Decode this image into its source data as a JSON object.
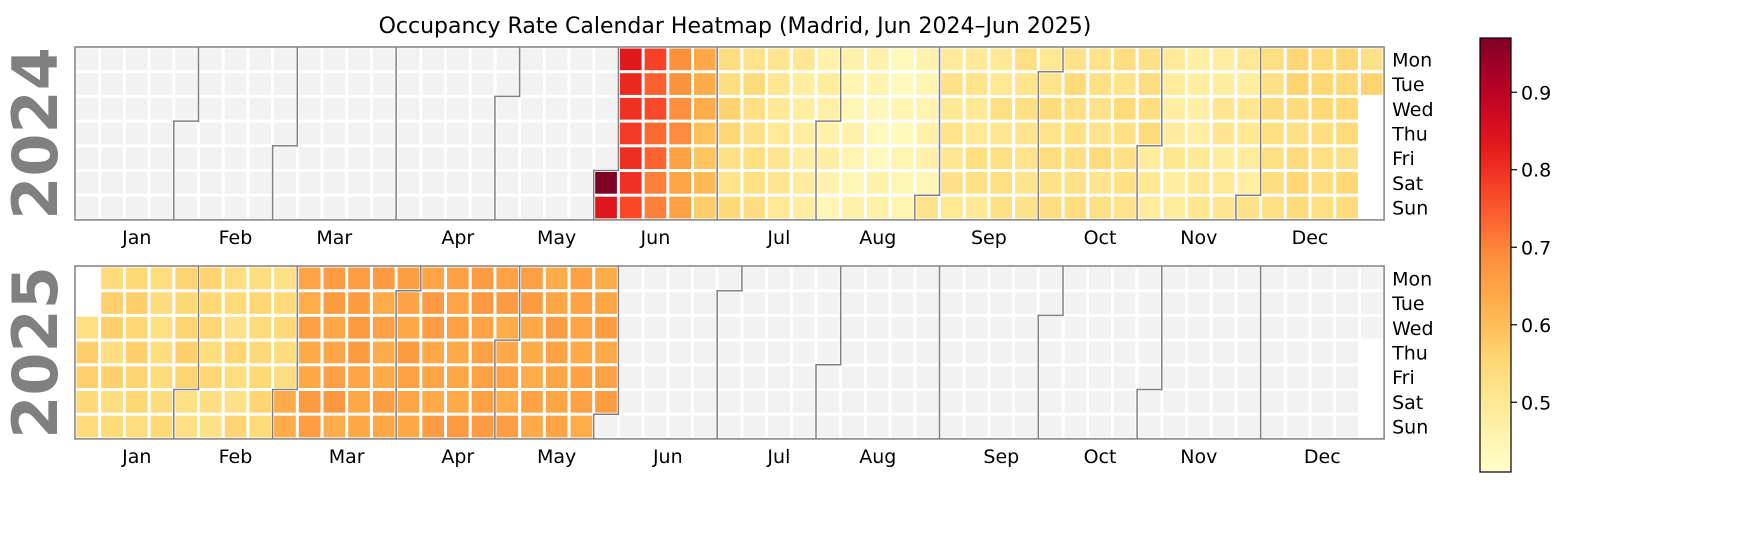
{
  "chart_data": {
    "type": "heatmap",
    "title": "Occupancy Rate Calendar Heatmap (Madrid, Jun 2024–Jun 2025)",
    "years": [
      "2024",
      "2025"
    ],
    "day_labels": [
      "Mon",
      "Tue",
      "Wed",
      "Thu",
      "Fri",
      "Sat",
      "Sun"
    ],
    "month_labels": [
      "Jan",
      "Feb",
      "Mar",
      "Apr",
      "May",
      "Jun",
      "Jul",
      "Aug",
      "Sep",
      "Oct",
      "Nov",
      "Dec"
    ],
    "date_range": [
      "2024-06-01",
      "2025-05-31"
    ],
    "value_range": [
      0.41,
      0.97
    ],
    "colormap": "YlOrRd",
    "empty_color": "#f2f2f2",
    "colorbar_ticks": [
      0.5,
      0.6,
      0.7,
      0.8,
      0.9
    ],
    "monthly_values": [
      {
        "month": "2024-06",
        "value": 0.7,
        "peak_day": "2024-06-01",
        "peak_value": 0.97
      },
      {
        "month": "2024-07",
        "value": 0.52
      },
      {
        "month": "2024-08",
        "value": 0.44
      },
      {
        "month": "2024-09",
        "value": 0.51
      },
      {
        "month": "2024-10",
        "value": 0.53
      },
      {
        "month": "2024-11",
        "value": 0.49
      },
      {
        "month": "2024-12",
        "value": 0.54
      },
      {
        "month": "2025-01",
        "value": 0.55
      },
      {
        "month": "2025-02",
        "value": 0.54
      },
      {
        "month": "2025-03",
        "value": 0.65
      },
      {
        "month": "2025-04",
        "value": 0.65
      },
      {
        "month": "2025-05",
        "value": 0.65
      }
    ]
  }
}
